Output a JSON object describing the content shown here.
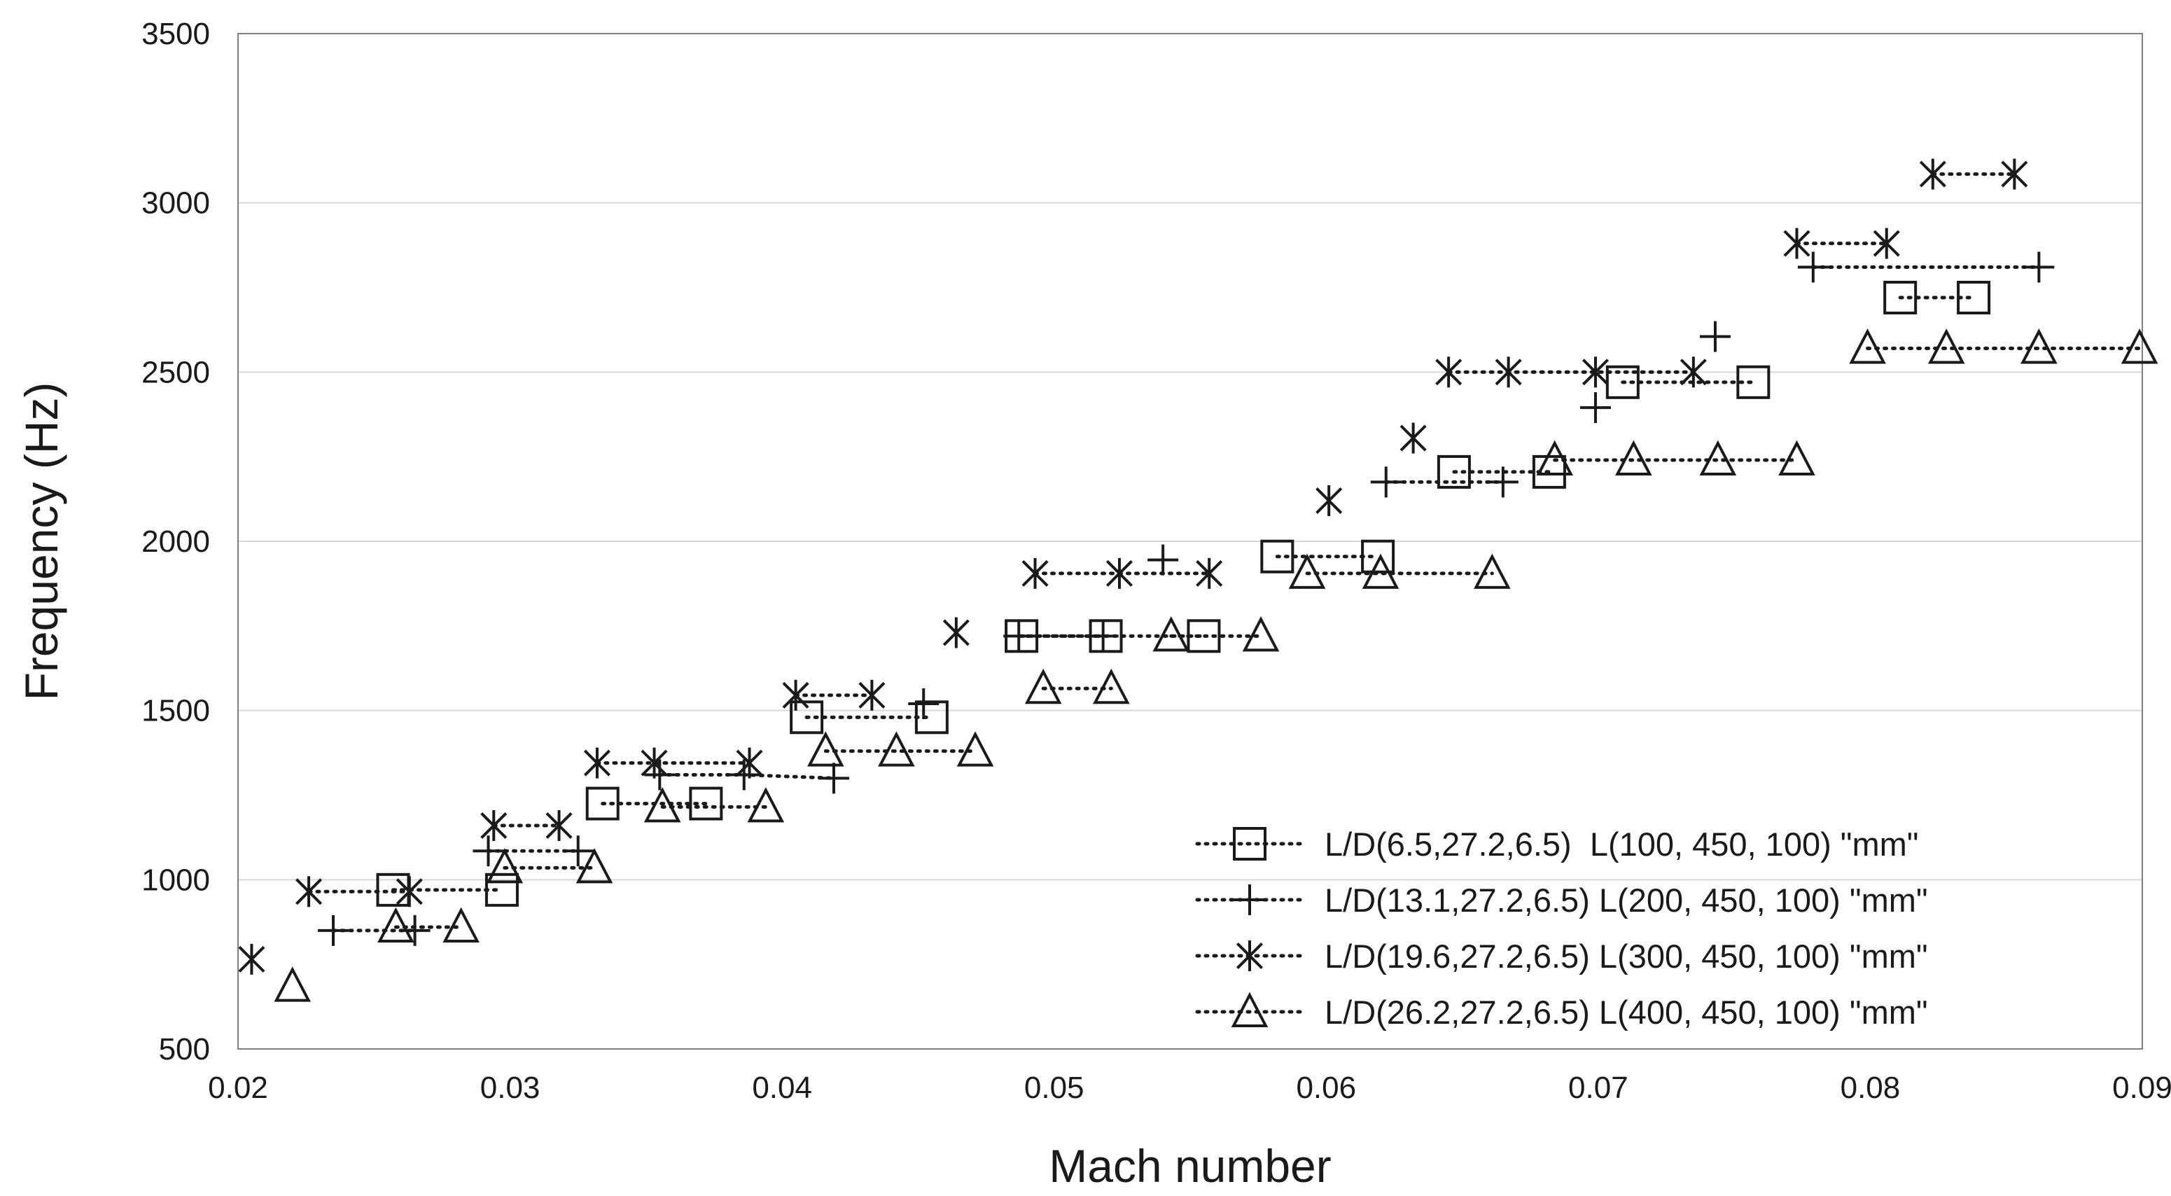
{
  "chart_data": {
    "type": "scatter",
    "title": "",
    "xlabel": "Mach number",
    "ylabel": "Frequency (Hz)",
    "xlim": [
      0.02,
      0.09
    ],
    "ylim": [
      500,
      3500
    ],
    "xticks": [
      0.02,
      0.03,
      0.04,
      0.05,
      0.06,
      0.07,
      0.08,
      0.09
    ],
    "xtick_labels": [
      "0.02",
      "0.03",
      "0.04",
      "0.05",
      "0.06",
      "0.07",
      "0.08",
      "0.09"
    ],
    "yticks": [
      500,
      1000,
      1500,
      2000,
      2500,
      3000,
      3500
    ],
    "ytick_labels": [
      "500",
      "1000",
      "1500",
      "2000",
      "2500",
      "3000",
      "3500"
    ],
    "grid": "horizontal",
    "legend_position": "bottom-right",
    "colors": {
      "ink": "#1a1a1a",
      "grid": "#d9d9d9",
      "frame": "#7f7f7f",
      "background": "#ffffff"
    },
    "series": [
      {
        "name": "L/D(6.5,27.2,6.5)  L(100, 450, 100) \"mm\"",
        "marker": "square",
        "groups": [
          [
            [
              0.0257,
              970
            ],
            [
              0.0297,
              970
            ]
          ],
          [
            [
              0.0334,
              1225
            ],
            [
              0.0372,
              1225
            ]
          ],
          [
            [
              0.0409,
              1480
            ],
            [
              0.0455,
              1480
            ]
          ],
          [
            [
              0.0488,
              1720
            ],
            [
              0.0519,
              1720
            ],
            [
              0.0555,
              1720
            ]
          ],
          [
            [
              0.0582,
              1955
            ],
            [
              0.0619,
              1955
            ]
          ],
          [
            [
              0.0647,
              2205
            ],
            [
              0.0682,
              2205
            ]
          ],
          [
            [
              0.0709,
              2470
            ],
            [
              0.0757,
              2470
            ]
          ],
          [
            [
              0.0811,
              2720
            ],
            [
              0.0838,
              2720
            ]
          ]
        ]
      },
      {
        "name": "L/D(13.1,27.2,6.5) L(200, 450, 100) \"mm\"",
        "marker": "plus",
        "groups": [
          [
            [
              0.0235,
              850
            ],
            [
              0.0265,
              850
            ]
          ],
          [
            [
              0.0292,
              1085
            ],
            [
              0.0325,
              1085
            ]
          ],
          [
            [
              0.0355,
              1310
            ],
            [
              0.0386,
              1310
            ],
            [
              0.0419,
              1300
            ]
          ],
          [
            [
              0.0452,
              1520
            ]
          ],
          [
            [
              0.0487,
              1720
            ],
            [
              0.0518,
              1720
            ]
          ],
          [
            [
              0.054,
              1945
            ]
          ],
          [
            [
              0.0622,
              2175
            ],
            [
              0.0665,
              2175
            ]
          ],
          [
            [
              0.0699,
              2395
            ]
          ],
          [
            [
              0.0743,
              2605
            ]
          ],
          [
            [
              0.0779,
              2810
            ],
            [
              0.0862,
              2810
            ]
          ]
        ]
      },
      {
        "name": "L/D(19.6,27.2,6.5) L(300, 450, 100) \"mm\"",
        "marker": "asterisk",
        "groups": [
          [
            [
              0.0205,
              765
            ]
          ],
          [
            [
              0.0226,
              965
            ],
            [
              0.0263,
              965
            ]
          ],
          [
            [
              0.0294,
              1160
            ],
            [
              0.0318,
              1160
            ]
          ],
          [
            [
              0.0332,
              1345
            ],
            [
              0.0353,
              1345
            ],
            [
              0.0388,
              1345
            ]
          ],
          [
            [
              0.0405,
              1545
            ],
            [
              0.0433,
              1545
            ]
          ],
          [
            [
              0.0464,
              1730
            ]
          ],
          [
            [
              0.0493,
              1905
            ],
            [
              0.0524,
              1905
            ],
            [
              0.0557,
              1905
            ]
          ],
          [
            [
              0.0601,
              2120
            ]
          ],
          [
            [
              0.0632,
              2305
            ]
          ],
          [
            [
              0.0645,
              2500
            ],
            [
              0.0667,
              2500
            ],
            [
              0.0699,
              2500
            ],
            [
              0.0735,
              2500
            ]
          ],
          [
            [
              0.0773,
              2880
            ],
            [
              0.0806,
              2880
            ]
          ],
          [
            [
              0.0823,
              3085
            ],
            [
              0.0853,
              3085
            ]
          ]
        ]
      },
      {
        "name": "L/D(26.2,27.2,6.5) L(400, 450, 100) \"mm\"",
        "marker": "triangle",
        "groups": [
          [
            [
              0.022,
              685
            ]
          ],
          [
            [
              0.0258,
              860
            ],
            [
              0.0282,
              860
            ]
          ],
          [
            [
              0.0298,
              1035
            ],
            [
              0.0331,
              1035
            ]
          ],
          [
            [
              0.0356,
              1215
            ],
            [
              0.0394,
              1215
            ]
          ],
          [
            [
              0.0416,
              1380
            ],
            [
              0.0442,
              1380
            ],
            [
              0.0471,
              1380
            ]
          ],
          [
            [
              0.0496,
              1565
            ],
            [
              0.0521,
              1565
            ]
          ],
          [
            [
              0.0543,
              1720
            ],
            [
              0.0576,
              1720
            ]
          ],
          [
            [
              0.0593,
              1905
            ],
            [
              0.062,
              1905
            ],
            [
              0.0661,
              1905
            ]
          ],
          [
            [
              0.0684,
              2240
            ],
            [
              0.0713,
              2240
            ],
            [
              0.0744,
              2240
            ],
            [
              0.0773,
              2240
            ]
          ],
          [
            [
              0.0799,
              2570
            ],
            [
              0.0828,
              2570
            ],
            [
              0.0862,
              2570
            ],
            [
              0.0899,
              2570
            ]
          ]
        ]
      }
    ]
  }
}
